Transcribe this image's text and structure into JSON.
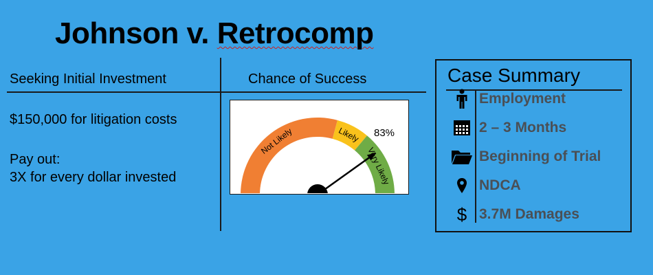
{
  "page": {
    "title_part1": "Johnson v. ",
    "title_part2": "Retrocomp"
  },
  "left_column": {
    "header": "Seeking Initial Investment",
    "amount_text": "$150,000 for litigation costs",
    "payout_label": "Pay out:",
    "payout_text": "3X for every dollar invested"
  },
  "middle_column": {
    "header": "Chance of Success"
  },
  "gauge": {
    "value_percent": 83,
    "value_label": "83%",
    "segments": [
      {
        "label": "Not Likely",
        "color": "#f07f33"
      },
      {
        "label": "Likely",
        "color": "#f9c21c"
      },
      {
        "label": "Very Likely",
        "color": "#6fac46"
      }
    ]
  },
  "summary": {
    "title": "Case Summary",
    "items": [
      {
        "icon": "person-icon",
        "label": "Employment"
      },
      {
        "icon": "calendar-icon",
        "label": "2 – 3 Months"
      },
      {
        "icon": "folder-icon",
        "label": "Beginning of Trial"
      },
      {
        "icon": "location-pin-icon",
        "label": "NDCA"
      },
      {
        "icon": "dollar-icon",
        "label": "3.7M Damages"
      }
    ]
  }
}
